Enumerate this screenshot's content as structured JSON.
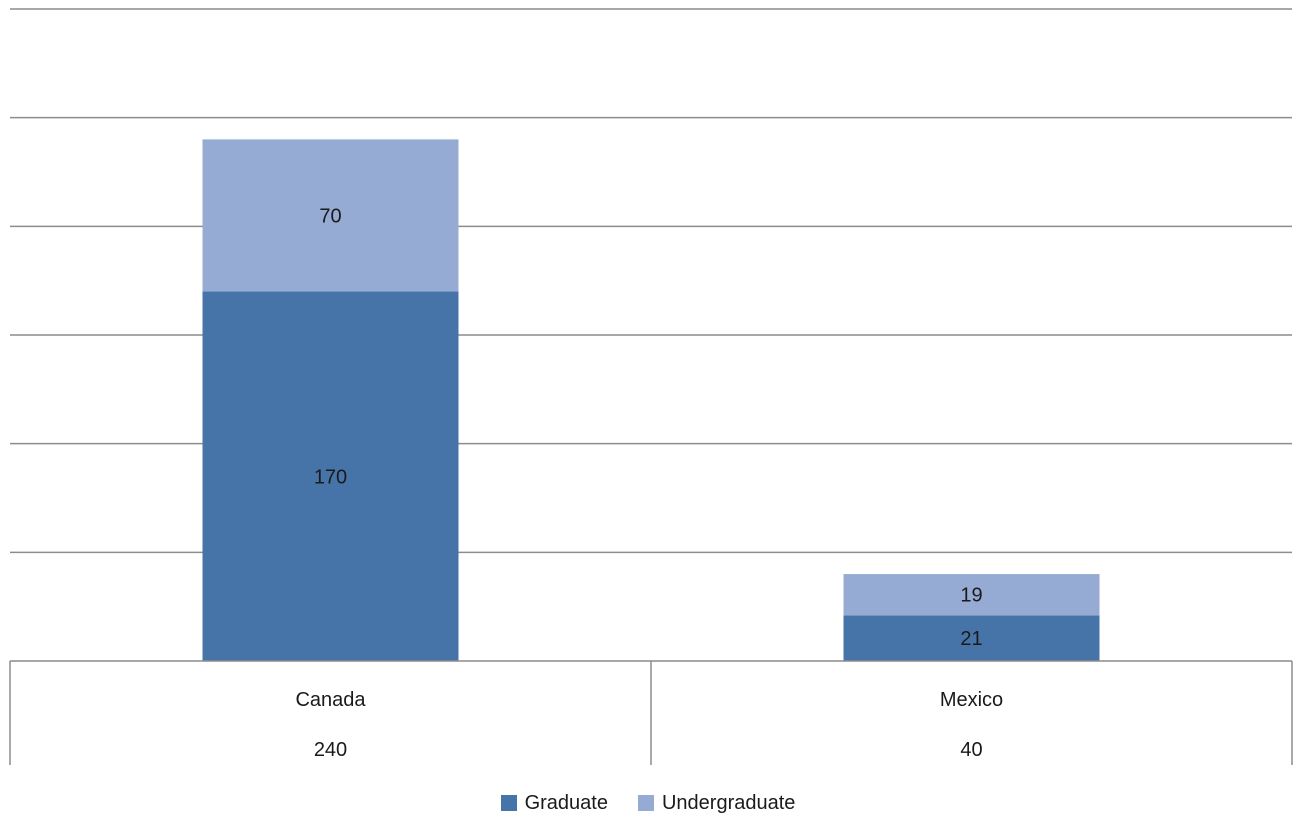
{
  "chart_data": {
    "type": "bar",
    "stacked": true,
    "categories": [
      "Canada",
      "Mexico"
    ],
    "totals": [
      "240",
      "40"
    ],
    "series": [
      {
        "name": "Graduate",
        "values": [
          170,
          21
        ],
        "color": "#4674a8"
      },
      {
        "name": "Undergraduate",
        "values": [
          70,
          19
        ],
        "color": "#95abd3"
      }
    ],
    "ylim": [
      0,
      300
    ],
    "grid": true,
    "legend_position": "bottom",
    "data_table_below": true
  }
}
